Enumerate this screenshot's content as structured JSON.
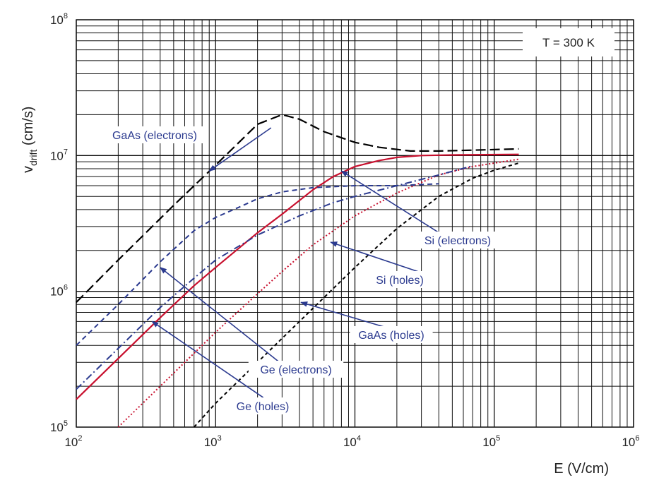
{
  "chart_data": {
    "type": "line",
    "xscale": "log",
    "yscale": "log",
    "xlim": [
      100,
      1000000
    ],
    "ylim": [
      100000,
      100000000
    ],
    "grid": true,
    "xlabel": "E (V/cm)",
    "ylabel_main": "v",
    "ylabel_sub": "drift",
    "ylabel_unit": "(cm/s)",
    "annotation": "T = 300 K",
    "x_ticks": [
      {
        "base": "10",
        "exp": "2",
        "value": 100
      },
      {
        "base": "10",
        "exp": "3",
        "value": 1000
      },
      {
        "base": "10",
        "exp": "4",
        "value": 10000
      },
      {
        "base": "10",
        "exp": "5",
        "value": 100000
      },
      {
        "base": "10",
        "exp": "6",
        "value": 1000000
      }
    ],
    "y_ticks": [
      {
        "base": "10",
        "exp": "5",
        "value": 100000
      },
      {
        "base": "10",
        "exp": "6",
        "value": 1000000
      },
      {
        "base": "10",
        "exp": "7",
        "value": 10000000
      },
      {
        "base": "10",
        "exp": "8",
        "value": 100000000
      }
    ],
    "series": [
      {
        "name": "GaAs (electrons)",
        "color": "#000000",
        "dash": "14,6",
        "width": 2.2,
        "points": [
          [
            100,
            830000
          ],
          [
            200,
            1700000
          ],
          [
            500,
            4300000
          ],
          [
            1000,
            8500000
          ],
          [
            2000,
            17000000
          ],
          [
            3000,
            20000000
          ],
          [
            4000,
            18500000
          ],
          [
            6000,
            15000000
          ],
          [
            10000,
            12500000
          ],
          [
            15000,
            11500000
          ],
          [
            25000,
            10800000
          ],
          [
            40000,
            10800000
          ],
          [
            80000,
            11000000
          ],
          [
            150000,
            11200000
          ]
        ]
      },
      {
        "name": "Si (electrons)",
        "color": "#c8102e",
        "dash": "",
        "width": 2.2,
        "points": [
          [
            100,
            160000
          ],
          [
            200,
            320000
          ],
          [
            400,
            640000
          ],
          [
            700,
            1100000
          ],
          [
            1000,
            1500000
          ],
          [
            2000,
            2700000
          ],
          [
            3000,
            3700000
          ],
          [
            5000,
            5600000
          ],
          [
            7000,
            7000000
          ],
          [
            10000,
            8300000
          ],
          [
            15000,
            9200000
          ],
          [
            20000,
            9700000
          ],
          [
            30000,
            10000000
          ],
          [
            50000,
            10100000
          ],
          [
            150000,
            10200000
          ]
        ]
      },
      {
        "name": "Si (holes)",
        "color": "#c8102e",
        "dash": "2,3",
        "width": 2,
        "points": [
          [
            200,
            100000
          ],
          [
            400,
            200000
          ],
          [
            700,
            350000
          ],
          [
            1000,
            500000
          ],
          [
            2000,
            960000
          ],
          [
            3000,
            1400000
          ],
          [
            5000,
            2200000
          ],
          [
            10000,
            3600000
          ],
          [
            20000,
            5300000
          ],
          [
            40000,
            7200000
          ],
          [
            70000,
            8300000
          ],
          [
            150000,
            9400000
          ]
        ]
      },
      {
        "name": "GaAs (holes)",
        "color": "#000000",
        "dash": "5,4",
        "width": 2,
        "points": [
          [
            700,
            100000
          ],
          [
            1000,
            150000
          ],
          [
            2000,
            300000
          ],
          [
            4000,
            600000
          ],
          [
            7000,
            1050000
          ],
          [
            10000,
            1500000
          ],
          [
            20000,
            2900000
          ],
          [
            40000,
            5000000
          ],
          [
            70000,
            6800000
          ],
          [
            100000,
            7800000
          ],
          [
            150000,
            8800000
          ]
        ]
      },
      {
        "name": "Ge (electrons)",
        "color": "#2b3a8f",
        "dash": "7,5",
        "width": 2,
        "points": [
          [
            100,
            400000
          ],
          [
            200,
            800000
          ],
          [
            400,
            1650000
          ],
          [
            700,
            2800000
          ],
          [
            1000,
            3500000
          ],
          [
            1500,
            4200000
          ],
          [
            2000,
            4800000
          ],
          [
            3000,
            5400000
          ],
          [
            5000,
            5800000
          ],
          [
            10000,
            6000000
          ],
          [
            20000,
            6000000
          ],
          [
            40000,
            6200000
          ]
        ]
      },
      {
        "name": "Ge (holes)",
        "color": "#2b3a8f",
        "dash": "10,4,2,4",
        "width": 2,
        "points": [
          [
            100,
            190000
          ],
          [
            200,
            380000
          ],
          [
            400,
            760000
          ],
          [
            700,
            1250000
          ],
          [
            1000,
            1700000
          ],
          [
            2000,
            2600000
          ],
          [
            4000,
            3600000
          ],
          [
            7000,
            4500000
          ],
          [
            10000,
            5000000
          ],
          [
            20000,
            6000000
          ],
          [
            40000,
            7200000
          ],
          [
            70000,
            8400000
          ]
        ]
      }
    ],
    "labels": [
      {
        "text": "GaAs (electrons)",
        "anchor": [
          2500,
          16000000
        ],
        "pointer_to": [
          900,
          7700000
        ]
      },
      {
        "text": "Si (electrons)",
        "anchor": [
          55000,
          2200000
        ],
        "pointer_to": [
          8000,
          7700000
        ]
      },
      {
        "text": "Si (holes)",
        "anchor": [
          35000,
          1300000
        ],
        "pointer_to": [
          6700,
          2300000
        ]
      },
      {
        "text": "GaAs (holes)",
        "anchor": [
          25000,
          480000
        ],
        "pointer_to": [
          4100,
          830000
        ]
      },
      {
        "text": "Ge (electrons)",
        "anchor": [
          3000,
          290000
        ],
        "pointer_to": [
          400,
          1500000
        ]
      },
      {
        "text": "Ge (holes)",
        "anchor": [
          2200,
          165000
        ],
        "pointer_to": [
          350,
          600000
        ]
      }
    ]
  }
}
